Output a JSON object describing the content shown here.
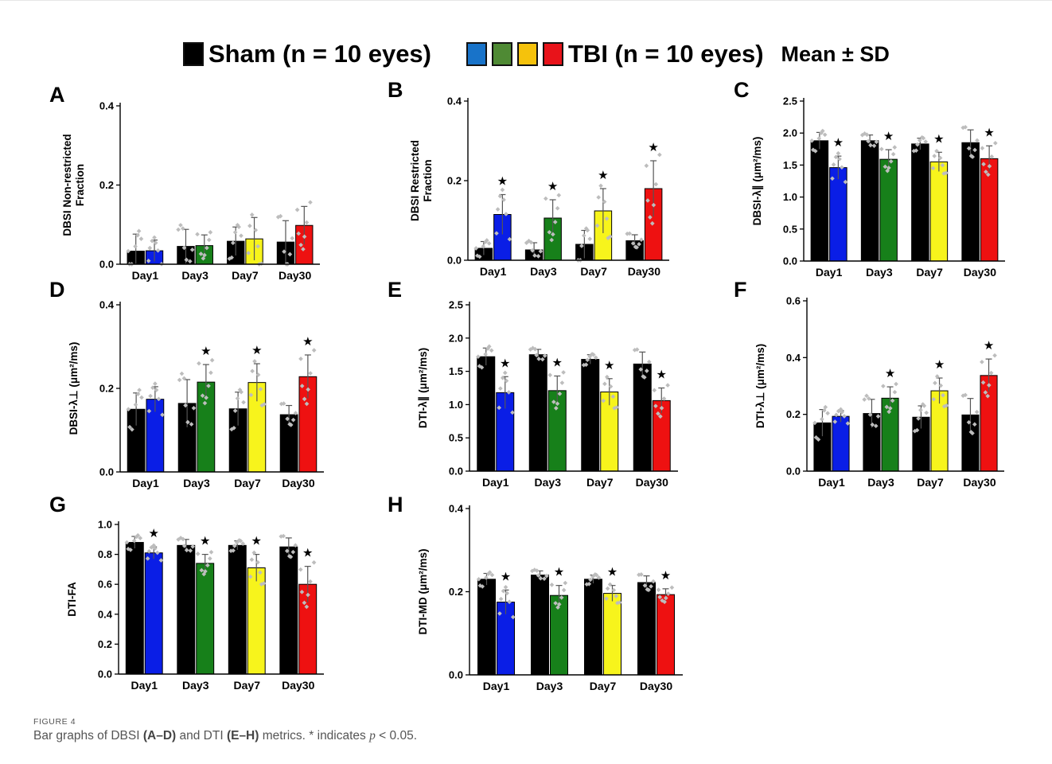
{
  "legend": {
    "sham_label": "Sham (n = 10 eyes)",
    "tbi_label": "TBI (n = 10 eyes)",
    "stat_label": "Mean ± SD"
  },
  "colors": {
    "sham": "#000000",
    "day1": "#0a1ee6",
    "day3": "#17801a",
    "day7": "#f7f41c",
    "day30": "#ee1111",
    "legend_day1": "#1873c9",
    "legend_day3": "#4f8a34",
    "legend_day7": "#f5c20c",
    "legend_day30": "#e8131a",
    "dots": "#bdbdbd",
    "star": "#000000"
  },
  "chart_data": [
    {
      "panel": "A",
      "type": "bar",
      "ylabel": "DBSI Non-restricted Fraction",
      "categories": [
        "Day1",
        "Day3",
        "Day7",
        "Day30"
      ],
      "yticks": [
        "0.0",
        "0.2",
        "0.4"
      ],
      "ylim": [
        0,
        0.4
      ],
      "series": [
        {
          "name": "Sham",
          "values": [
            0.033,
            0.045,
            0.058,
            0.056
          ],
          "sd": [
            0.043,
            0.043,
            0.036,
            0.054
          ]
        },
        {
          "name": "TBI",
          "values": [
            0.034,
            0.047,
            0.064,
            0.098
          ],
          "sd": [
            0.027,
            0.027,
            0.054,
            0.048
          ]
        }
      ],
      "significant": [
        false,
        false,
        false,
        false
      ]
    },
    {
      "panel": "B",
      "type": "bar",
      "ylabel": "DBSI Restricted Fraction",
      "categories": [
        "Day1",
        "Day3",
        "Day7",
        "Day30"
      ],
      "yticks": [
        "0.0",
        "0.2",
        "0.4"
      ],
      "ylim": [
        0,
        0.4
      ],
      "series": [
        {
          "name": "Sham",
          "values": [
            0.03,
            0.026,
            0.04,
            0.049
          ],
          "sd": [
            0.017,
            0.018,
            0.035,
            0.015
          ]
        },
        {
          "name": "TBI",
          "values": [
            0.115,
            0.106,
            0.124,
            0.18
          ],
          "sd": [
            0.05,
            0.046,
            0.056,
            0.07
          ]
        }
      ],
      "significant": [
        true,
        true,
        true,
        true
      ]
    },
    {
      "panel": "C",
      "type": "bar",
      "ylabel": "DBSI-λ∥ (μm²/ms)",
      "categories": [
        "Day1",
        "Day3",
        "Day7",
        "Day30"
      ],
      "yticks": [
        "0.0",
        "0.5",
        "1.0",
        "1.5",
        "2.0",
        "2.5"
      ],
      "ylim": [
        0,
        2.5
      ],
      "series": [
        {
          "name": "Sham",
          "values": [
            1.88,
            1.88,
            1.83,
            1.85
          ],
          "sd": [
            0.13,
            0.09,
            0.09,
            0.2
          ]
        },
        {
          "name": "TBI",
          "values": [
            1.46,
            1.59,
            1.55,
            1.6
          ],
          "sd": [
            0.18,
            0.15,
            0.15,
            0.2
          ]
        }
      ],
      "significant": [
        true,
        true,
        true,
        true
      ]
    },
    {
      "panel": "D",
      "type": "bar",
      "ylabel": "DBSI-λ⊥ (μm²/ms)",
      "categories": [
        "Day1",
        "Day3",
        "Day7",
        "Day30"
      ],
      "yticks": [
        "0.0",
        "0.2",
        "0.4"
      ],
      "ylim": [
        0,
        0.4
      ],
      "series": [
        {
          "name": "Sham",
          "values": [
            0.15,
            0.164,
            0.151,
            0.137
          ],
          "sd": [
            0.039,
            0.057,
            0.04,
            0.022
          ]
        },
        {
          "name": "TBI",
          "values": [
            0.174,
            0.215,
            0.214,
            0.228
          ],
          "sd": [
            0.03,
            0.042,
            0.045,
            0.052
          ]
        }
      ],
      "significant": [
        false,
        true,
        true,
        true
      ]
    },
    {
      "panel": "E",
      "type": "bar",
      "ylabel": "DTI-λ∥ (μm²/ms)",
      "categories": [
        "Day1",
        "Day3",
        "Day7",
        "Day30"
      ],
      "yticks": [
        "0.0",
        "0.5",
        "1.0",
        "1.5",
        "2.0",
        "2.5"
      ],
      "ylim": [
        0,
        2.5
      ],
      "series": [
        {
          "name": "Sham",
          "values": [
            1.72,
            1.75,
            1.68,
            1.61
          ],
          "sd": [
            0.13,
            0.08,
            0.07,
            0.18
          ]
        },
        {
          "name": "TBI",
          "values": [
            1.18,
            1.21,
            1.19,
            1.06
          ],
          "sd": [
            0.24,
            0.22,
            0.2,
            0.19
          ]
        }
      ],
      "significant": [
        true,
        true,
        true,
        true
      ]
    },
    {
      "panel": "F",
      "type": "bar",
      "ylabel": "DTI-λ⊥ (μm²/ms)",
      "categories": [
        "Day1",
        "Day3",
        "Day7",
        "Day30"
      ],
      "yticks": [
        "0.0",
        "0.2",
        "0.4",
        "0.6"
      ],
      "ylim": [
        0,
        0.6
      ],
      "series": [
        {
          "name": "Sham",
          "values": [
            0.17,
            0.203,
            0.19,
            0.198
          ],
          "sd": [
            0.047,
            0.05,
            0.04,
            0.058
          ]
        },
        {
          "name": "TBI",
          "values": [
            0.193,
            0.257,
            0.283,
            0.337
          ],
          "sd": [
            0.02,
            0.04,
            0.045,
            0.058
          ]
        }
      ],
      "significant": [
        false,
        true,
        true,
        true
      ]
    },
    {
      "panel": "G",
      "type": "bar",
      "ylabel": "DTI-FA",
      "categories": [
        "Day1",
        "Day3",
        "Day7",
        "Day30"
      ],
      "yticks": [
        "0.0",
        "0.2",
        "0.4",
        "0.6",
        "0.8",
        "1.0"
      ],
      "ylim": [
        0,
        1.0
      ],
      "series": [
        {
          "name": "Sham",
          "values": [
            0.88,
            0.86,
            0.86,
            0.85
          ],
          "sd": [
            0.04,
            0.04,
            0.03,
            0.06
          ]
        },
        {
          "name": "TBI",
          "values": [
            0.81,
            0.74,
            0.71,
            0.6
          ],
          "sd": [
            0.04,
            0.06,
            0.09,
            0.12
          ]
        }
      ],
      "significant": [
        true,
        true,
        true,
        true
      ]
    },
    {
      "panel": "H",
      "type": "bar",
      "ylabel": "DTI-MD (μm²/ms)",
      "categories": [
        "Day1",
        "Day3",
        "Day7",
        "Day30"
      ],
      "yticks": [
        "0.0",
        "0.2",
        "0.4"
      ],
      "ylim": [
        0,
        0.4
      ],
      "series": [
        {
          "name": "Sham",
          "values": [
            0.23,
            0.24,
            0.23,
            0.222
          ],
          "sd": [
            0.014,
            0.01,
            0.01,
            0.016
          ]
        },
        {
          "name": "TBI",
          "values": [
            0.175,
            0.191,
            0.196,
            0.193
          ],
          "sd": [
            0.029,
            0.024,
            0.019,
            0.014
          ]
        }
      ],
      "significant": [
        true,
        true,
        true,
        true
      ]
    }
  ],
  "caption": {
    "figure_label": "FIGURE 4",
    "text_1": "Bar graphs of DBSI ",
    "range_1": "(A–D)",
    "text_2": " and DTI ",
    "range_2": "(E–H)",
    "text_3": " metrics. * indicates ",
    "p_symbol": "p",
    "text_4": " < 0.05."
  }
}
